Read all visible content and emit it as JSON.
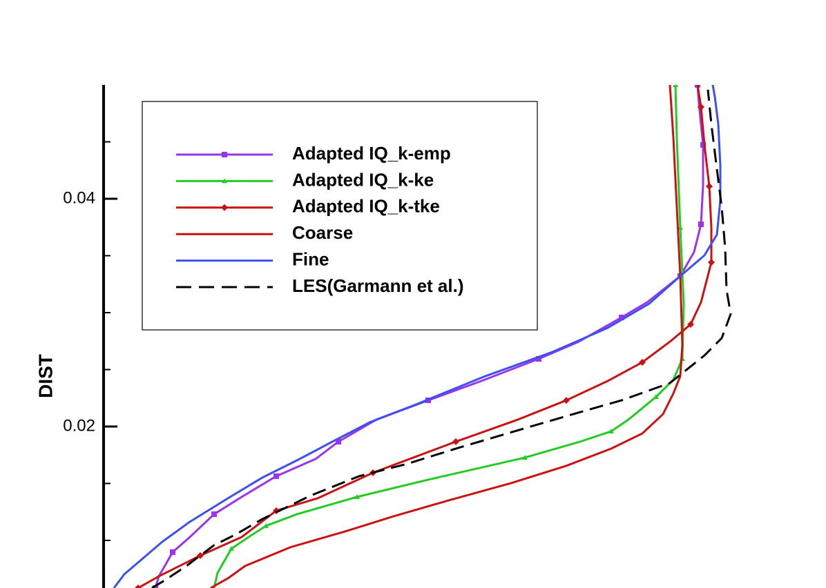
{
  "chart_data": {
    "type": "line",
    "ylabel": "DIST",
    "xlim": [
      0,
      10.46
    ],
    "ylim": [
      0.00582,
      0.05
    ],
    "yticks": [
      0.02,
      {
        "value": 0.04,
        "label": "0.04"
      }
    ],
    "yminorticks": [
      0.01,
      0.015,
      0.025,
      0.03,
      0.035,
      0.045
    ],
    "series": [
      {
        "name": "Adapted IQ_k-emp",
        "color": "#9a33ee",
        "marker": "square",
        "dash": false,
        "x": [
          0.75,
          0.8,
          1.0,
          1.25,
          1.6,
          2.0,
          2.5,
          3.07,
          3.4,
          3.95,
          4.7,
          5.47,
          6.3,
          6.88,
          7.5,
          7.87,
          8.35,
          8.55,
          8.65,
          8.68,
          8.68,
          8.62,
          8.6
        ],
        "values": [
          0.00582,
          0.00685,
          0.00897,
          0.0103,
          0.0123,
          0.01382,
          0.01564,
          0.01715,
          0.01867,
          0.02061,
          0.0223,
          0.024,
          0.02594,
          0.02745,
          0.02958,
          0.03091,
          0.03321,
          0.03533,
          0.03776,
          0.04121,
          0.04473,
          0.04836,
          0.05
        ]
      },
      {
        "name": "Adapted IQ_k-ke",
        "color": "#22cc22",
        "marker": "triangle",
        "dash": false,
        "x": [
          1.6,
          1.65,
          1.85,
          2.1,
          2.35,
          2.8,
          3.67,
          4.7,
          6.1,
          6.9,
          7.35,
          7.6,
          8.0,
          8.25,
          8.38,
          8.4,
          8.35,
          8.3,
          8.28
        ],
        "values": [
          0.00582,
          0.00715,
          0.00927,
          0.0103,
          0.01127,
          0.0123,
          0.01382,
          0.01533,
          0.01727,
          0.01867,
          0.01958,
          0.02061,
          0.02261,
          0.02412,
          0.02594,
          0.03079,
          0.03745,
          0.04533,
          0.05
        ]
      },
      {
        "name": "Adapted IQ_k-tke",
        "color": "#cc1111",
        "marker": "diamond",
        "dash": false,
        "x": [
          0.5,
          0.8,
          1.4,
          2.0,
          2.5,
          3.1,
          3.9,
          4.43,
          5.1,
          6.0,
          6.7,
          7.3,
          7.8,
          8.2,
          8.5,
          8.65,
          8.8,
          8.8,
          8.77,
          8.7,
          8.65,
          8.6
        ],
        "values": [
          0.00582,
          0.00685,
          0.00867,
          0.0103,
          0.01261,
          0.0137,
          0.01594,
          0.01715,
          0.01867,
          0.02061,
          0.0223,
          0.024,
          0.02564,
          0.02745,
          0.02897,
          0.03091,
          0.03442,
          0.03745,
          0.04109,
          0.04473,
          0.04806,
          0.05
        ]
      },
      {
        "name": "Coarse",
        "color": "#cc1111",
        "marker": null,
        "dash": false,
        "x": [
          1.55,
          1.8,
          2.05,
          2.7,
          3.5,
          4.2,
          5.0,
          5.9,
          6.7,
          7.35,
          7.8,
          8.1,
          8.25,
          8.35,
          8.38,
          8.35,
          8.3,
          8.25,
          8.2
        ],
        "values": [
          0.00582,
          0.00667,
          0.00776,
          0.00939,
          0.01079,
          0.01212,
          0.01352,
          0.01503,
          0.01655,
          0.01806,
          0.01939,
          0.02109,
          0.02291,
          0.02442,
          0.02715,
          0.03321,
          0.03927,
          0.04533,
          0.05
        ]
      },
      {
        "name": "Fine",
        "color": "#3c50f0",
        "marker": null,
        "dash": false,
        "x": [
          0.15,
          0.3,
          0.5,
          0.85,
          1.25,
          1.8,
          2.3,
          2.8,
          3.35,
          3.85,
          4.5,
          5.5,
          6.5,
          7.3,
          7.9,
          8.35,
          8.7,
          8.88,
          8.93,
          8.93,
          8.9,
          8.85,
          8.82
        ],
        "values": [
          0.00582,
          0.00703,
          0.00806,
          0.00988,
          0.01164,
          0.0137,
          0.01552,
          0.01703,
          0.01879,
          0.02036,
          0.02188,
          0.02436,
          0.02655,
          0.02867,
          0.03079,
          0.03321,
          0.03503,
          0.03685,
          0.03988,
          0.04291,
          0.04655,
          0.04897,
          0.05
        ]
      },
      {
        "name": "LES(Garmann et al.)",
        "color": "#000000",
        "marker": null,
        "dash": true,
        "x": [
          0.7,
          0.9,
          1.2,
          1.6,
          1.9,
          2.3,
          3.0,
          3.7,
          4.4,
          5.1,
          5.95,
          6.8,
          7.5,
          8.2,
          8.7,
          8.95,
          9.08,
          9.02,
          9.0,
          8.95,
          8.88,
          8.8,
          8.75
        ],
        "values": [
          0.00582,
          0.00655,
          0.00776,
          0.00958,
          0.01048,
          0.01188,
          0.01394,
          0.01564,
          0.01673,
          0.01806,
          0.01958,
          0.02109,
          0.0223,
          0.02382,
          0.02624,
          0.02776,
          0.02988,
          0.032,
          0.03564,
          0.03927,
          0.04261,
          0.04655,
          0.04958
        ]
      }
    ]
  }
}
